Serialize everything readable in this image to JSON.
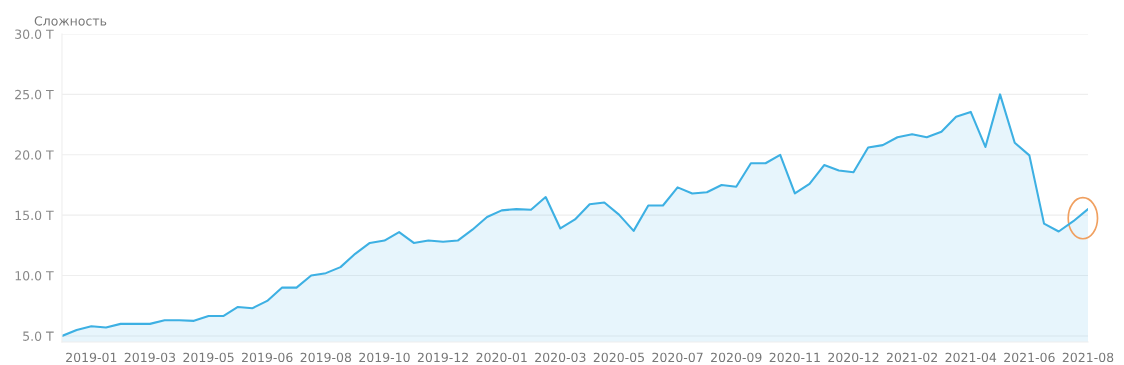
{
  "chart_data": {
    "type": "area",
    "ylabel": "Сложность",
    "categories": [
      null,
      null,
      "2019-01",
      null,
      null,
      null,
      "2019-03",
      null,
      null,
      null,
      "2019-05",
      null,
      null,
      null,
      "2019-06",
      null,
      null,
      null,
      "2019-08",
      null,
      null,
      null,
      "2019-10",
      null,
      null,
      null,
      "2019-12",
      null,
      null,
      null,
      "2020-01",
      null,
      null,
      null,
      "2020-03",
      null,
      null,
      null,
      "2020-05",
      null,
      null,
      null,
      "2020-07",
      null,
      null,
      null,
      "2020-09",
      null,
      null,
      null,
      "2020-11",
      null,
      null,
      null,
      "2020-12",
      null,
      null,
      null,
      "2021-02",
      null,
      null,
      null,
      "2021-04",
      null,
      null,
      null,
      "2021-06",
      null,
      null,
      null,
      "2021-08"
    ],
    "series": [
      {
        "color": "#3db0e3",
        "values": [
          5.0,
          5.5,
          5.8,
          5.7,
          6.0,
          6.0,
          6.0,
          6.3,
          6.3,
          6.25,
          6.65,
          6.65,
          7.4,
          7.3,
          7.9,
          9.0,
          9.0,
          10.0,
          10.2,
          10.7,
          11.8,
          12.7,
          12.9,
          13.6,
          12.7,
          12.9,
          12.8,
          12.9,
          13.8,
          14.85,
          15.4,
          15.5,
          15.45,
          16.5,
          13.9,
          14.65,
          15.9,
          16.05,
          15.05,
          13.7,
          15.8,
          15.8,
          17.3,
          16.8,
          16.9,
          17.5,
          17.35,
          19.3,
          19.3,
          20.0,
          16.8,
          17.6,
          19.15,
          18.7,
          18.55,
          20.6,
          20.8,
          21.45,
          21.7,
          21.45,
          21.9,
          23.15,
          23.55,
          20.65,
          25.0,
          21.0,
          19.95,
          14.3,
          13.65,
          14.5,
          15.5
        ]
      }
    ],
    "ylim": [
      4.5,
      30
    ],
    "yticks": [
      {
        "value": 5,
        "label": "5.0 T"
      },
      {
        "value": 10,
        "label": "10.0 T"
      },
      {
        "value": 15,
        "label": "15.0 T"
      },
      {
        "value": 20,
        "label": "20.0 T"
      },
      {
        "value": 25,
        "label": "25.0 T"
      },
      {
        "value": 30,
        "label": "30.0 T"
      }
    ],
    "grid": "y",
    "legend": false
  }
}
